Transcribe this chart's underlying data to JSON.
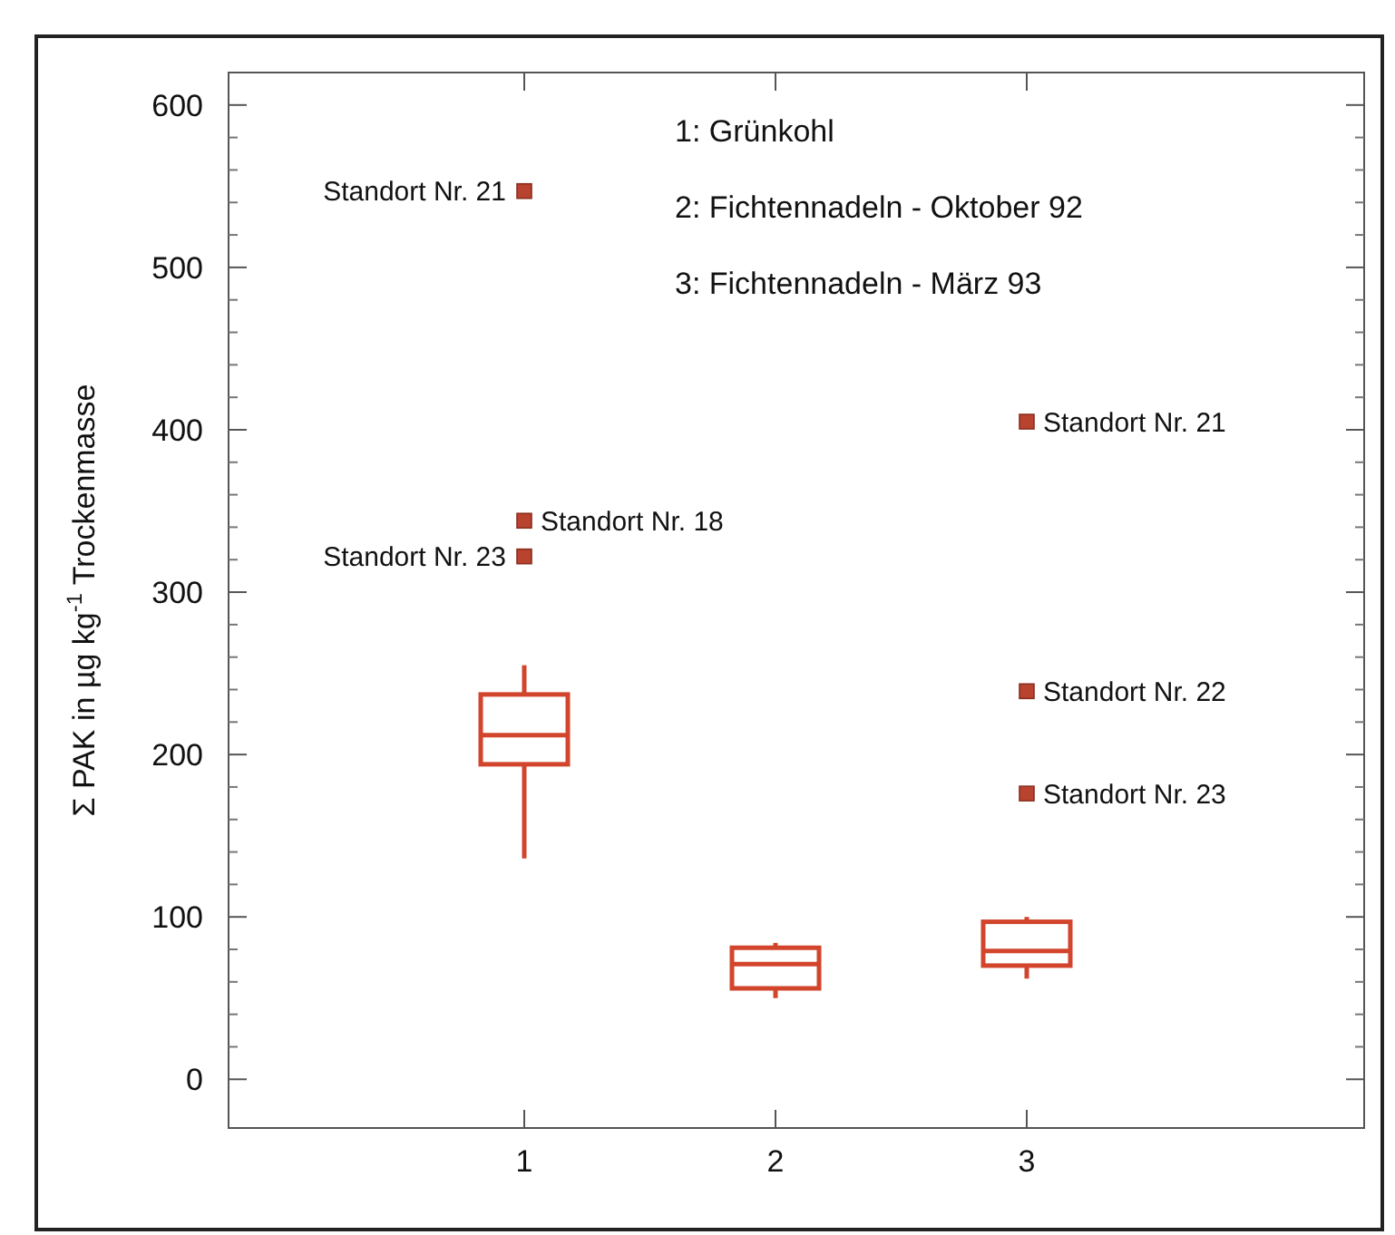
{
  "chart_data": {
    "type": "box",
    "ylabel": "Σ PAK in µg kg$^{-1}$ Trockenmasse",
    "categories": [
      "1",
      "2",
      "3"
    ],
    "ylim": [
      -30,
      620
    ],
    "yticks": [
      0,
      100,
      200,
      300,
      400,
      500,
      600
    ],
    "series": [
      {
        "color": "#d2452c",
        "boxes": [
          {
            "low": 136,
            "q1": 194,
            "median": 212,
            "q3": 237,
            "high": 255
          },
          {
            "low": 50,
            "q1": 56,
            "median": 71,
            "q3": 81,
            "high": 84
          },
          {
            "low": 62,
            "q1": 70,
            "median": 79,
            "q3": 97,
            "high": 100
          }
        ]
      },
      {
        "type": "scatter",
        "color": "#b8432e",
        "marker": "square",
        "x": [
          "1",
          "1",
          "1",
          "3",
          "3",
          "3"
        ],
        "values": [
          547,
          344,
          322,
          405,
          239,
          176
        ]
      }
    ],
    "annotations": [
      "1: Grünkohl",
      "2: Fichtennadeln - Oktober 92",
      "3: Fichtennadeln - März 93",
      {
        "text": "Standort Nr. 21",
        "x": "1",
        "y": 547
      },
      {
        "text": "Standort Nr. 18",
        "x": "1",
        "y": 344
      },
      {
        "text": "Standort Nr. 23",
        "x": "1",
        "y": 322
      },
      {
        "text": "Standort Nr. 21",
        "x": "3",
        "y": 405
      },
      {
        "text": "Standort Nr. 22",
        "x": "3",
        "y": 239
      },
      {
        "text": "Standort Nr. 23",
        "x": "3",
        "y": 176
      }
    ]
  }
}
